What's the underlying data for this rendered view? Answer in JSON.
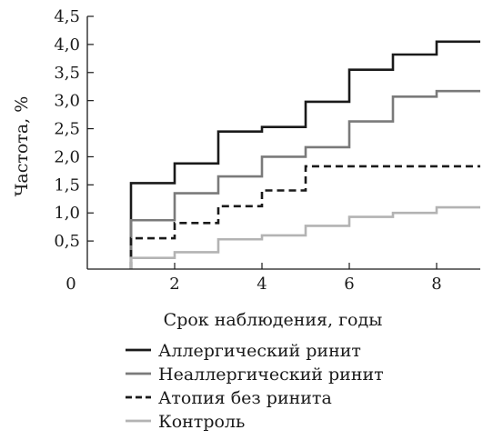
{
  "chart_data": {
    "type": "line",
    "step": true,
    "xlabel": "Срок наблюдения, годы",
    "ylabel": "Частота, %",
    "xlim": [
      0,
      9
    ],
    "ylim": [
      0,
      4.5
    ],
    "origin_label": "0",
    "x_ticks": [
      {
        "value": 2,
        "label": "2"
      },
      {
        "value": 4,
        "label": "4"
      },
      {
        "value": 6,
        "label": "6"
      },
      {
        "value": 8,
        "label": "8"
      }
    ],
    "y_ticks": [
      {
        "value": 0.5,
        "label": "0,5"
      },
      {
        "value": 1.0,
        "label": "1,0"
      },
      {
        "value": 1.5,
        "label": "1,5"
      },
      {
        "value": 2.0,
        "label": "2,0"
      },
      {
        "value": 2.5,
        "label": "2,5"
      },
      {
        "value": 3.0,
        "label": "3,0"
      },
      {
        "value": 3.5,
        "label": "3,5"
      },
      {
        "value": 4.0,
        "label": "4,0"
      },
      {
        "value": 4.5,
        "label": "4,5"
      }
    ],
    "grid": false,
    "legend_position": "bottom",
    "series": [
      {
        "name": "Аллергический ринит",
        "color": "#1a1a1a",
        "dash": "solid",
        "x": [
          1,
          2,
          3,
          4,
          5,
          6,
          7,
          8,
          9
        ],
        "y": [
          1.53,
          1.88,
          2.45,
          2.53,
          2.98,
          3.55,
          3.82,
          4.05,
          4.05
        ]
      },
      {
        "name": "Неаллергический ринит",
        "color": "#7a7a7a",
        "dash": "solid",
        "x": [
          1,
          2,
          3,
          4,
          5,
          6,
          7,
          8,
          9
        ],
        "y": [
          0.87,
          1.35,
          1.65,
          2.0,
          2.17,
          2.63,
          3.07,
          3.17,
          3.17
        ]
      },
      {
        "name": "Атопия без ринита",
        "color": "#1a1a1a",
        "dash": "dashed",
        "x": [
          1,
          2,
          3,
          4,
          5,
          6,
          7,
          8,
          9
        ],
        "y": [
          0.55,
          0.82,
          1.12,
          1.4,
          1.83,
          1.83,
          1.83,
          1.83,
          1.83
        ]
      },
      {
        "name": "Контроль",
        "color": "#b3b3b3",
        "dash": "solid",
        "x": [
          1,
          2,
          3,
          4,
          5,
          6,
          7,
          8,
          9
        ],
        "y": [
          0.2,
          0.3,
          0.53,
          0.6,
          0.77,
          0.93,
          1.0,
          1.1,
          1.1
        ]
      }
    ]
  }
}
